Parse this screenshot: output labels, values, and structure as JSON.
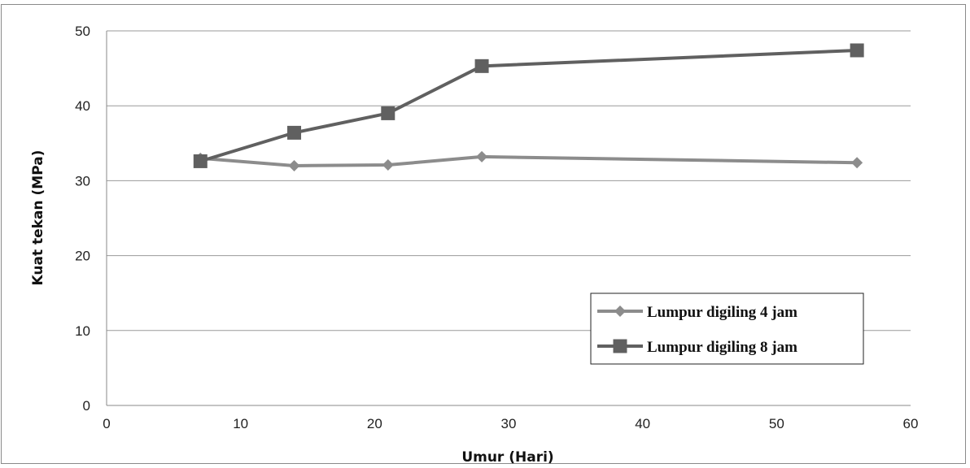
{
  "chart_data": {
    "type": "line",
    "title": "",
    "xlabel": "Umur (Hari)",
    "ylabel": "Kuat tekan (MPa)",
    "xlim": [
      0,
      60
    ],
    "ylim": [
      0,
      50
    ],
    "x_ticks": [
      0,
      10,
      20,
      30,
      40,
      50,
      60
    ],
    "y_ticks": [
      0,
      10,
      20,
      30,
      40,
      50
    ],
    "grid": "horizontal",
    "legend_position": "center-right",
    "series": [
      {
        "name": "Lumpur digiling 4 jam",
        "marker": "diamond",
        "color": "#8c8c8c",
        "x": [
          7,
          14,
          21,
          28,
          56
        ],
        "y": [
          33.0,
          32.0,
          32.1,
          33.2,
          32.4
        ]
      },
      {
        "name": "Lumpur digiling 8 jam",
        "marker": "square",
        "color": "#606060",
        "x": [
          7,
          14,
          21,
          28,
          56
        ],
        "y": [
          32.6,
          36.4,
          39.0,
          45.3,
          47.4
        ]
      }
    ]
  }
}
